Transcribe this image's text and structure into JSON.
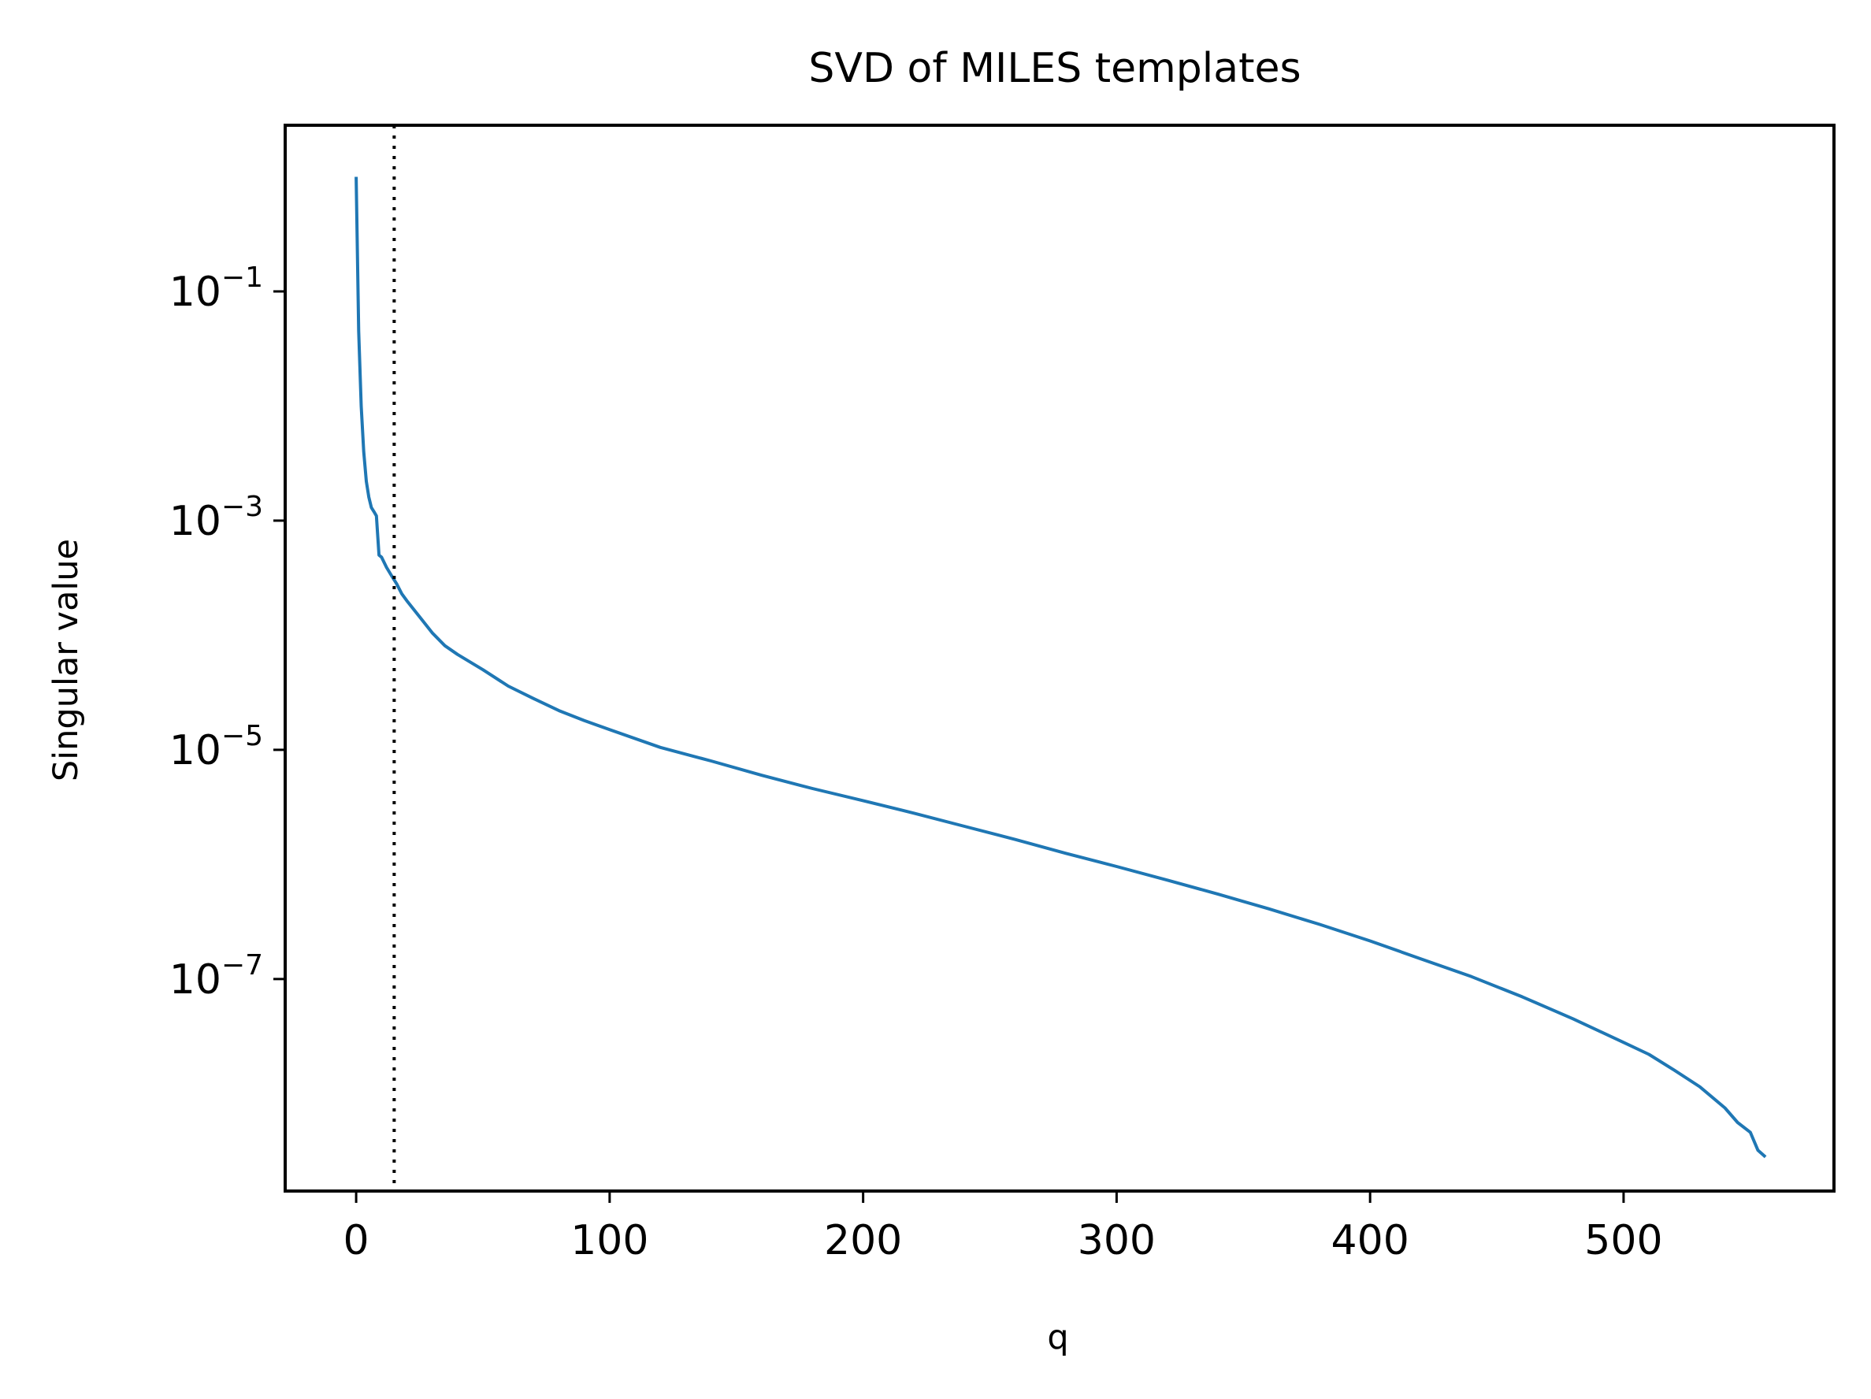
{
  "chart_data": {
    "type": "line",
    "title": "SVD of MILES templates",
    "xlabel": "q",
    "ylabel": "Singular value",
    "x_scale": "linear",
    "y_scale": "log",
    "xlim": [
      -28,
      583
    ],
    "ylim_log10": [
      -8.85,
      0.45
    ],
    "xticks": [
      0,
      100,
      200,
      300,
      400,
      500
    ],
    "xtick_labels": [
      "0",
      "100",
      "200",
      "300",
      "400",
      "500"
    ],
    "yticks_log10": [
      -1,
      -3,
      -5,
      -7
    ],
    "ytick_labels": [
      {
        "base": "10",
        "exponent": "−1"
      },
      {
        "base": "10",
        "exponent": "−3"
      },
      {
        "base": "10",
        "exponent": "−5"
      },
      {
        "base": "10",
        "exponent": "−7"
      }
    ],
    "grid": false,
    "series": [
      {
        "color": "#1f77b4",
        "line_style": "solid",
        "x": [
          0,
          1,
          2,
          3,
          4,
          5,
          6,
          7,
          8,
          9,
          10,
          12,
          14,
          16,
          18,
          20,
          25,
          30,
          35,
          40,
          50,
          60,
          70,
          80,
          90,
          100,
          120,
          140,
          160,
          180,
          200,
          220,
          240,
          260,
          280,
          300,
          320,
          340,
          360,
          380,
          400,
          420,
          440,
          460,
          480,
          500,
          510,
          520,
          530,
          540,
          545,
          550,
          553,
          556
        ],
        "y": [
          1.0,
          0.045,
          0.01,
          0.004,
          0.0022,
          0.0016,
          0.0013,
          0.0012,
          0.0011,
          0.0005,
          0.00048,
          0.00039,
          0.00033,
          0.00028,
          0.00023,
          0.0002,
          0.000145,
          0.000105,
          8.1e-05,
          6.8e-05,
          5e-05,
          3.6e-05,
          2.8e-05,
          2.2e-05,
          1.8e-05,
          1.5e-05,
          1.05e-05,
          8e-06,
          6e-06,
          4.6e-06,
          3.6e-06,
          2.8e-06,
          2.15e-06,
          1.65e-06,
          1.25e-06,
          9.6e-07,
          7.3e-07,
          5.5e-07,
          4.1e-07,
          3e-07,
          2.15e-07,
          1.5e-07,
          1.05e-07,
          7e-08,
          4.5e-08,
          2.8e-08,
          2.2e-08,
          1.6e-08,
          1.15e-08,
          7.5e-09,
          5.6e-09,
          4.6e-09,
          3.2e-09,
          2.8e-09
        ]
      }
    ],
    "vline": {
      "x": 15,
      "color": "#000000",
      "line_style": "dotted"
    }
  }
}
